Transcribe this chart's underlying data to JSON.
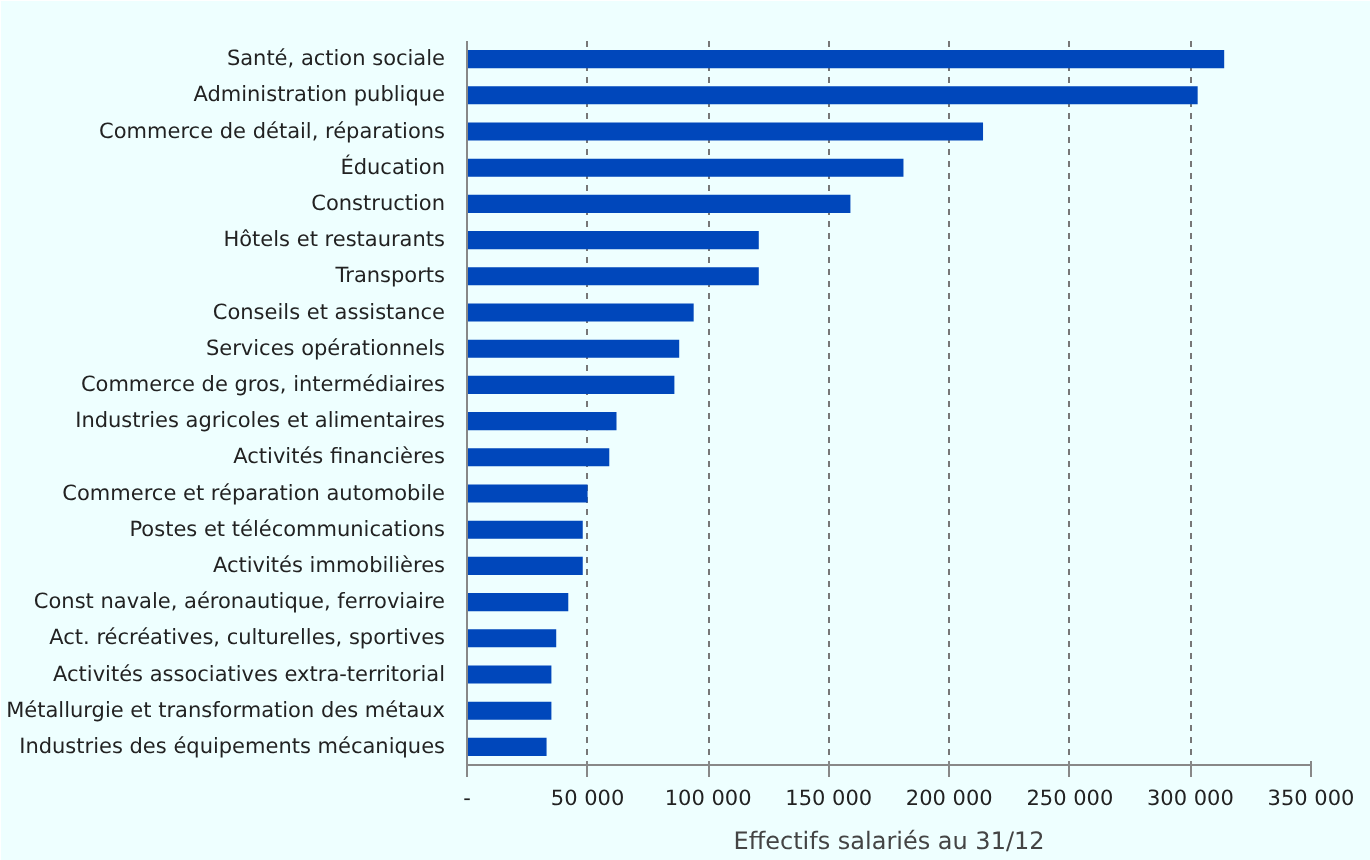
{
  "chart_data": {
    "type": "bar",
    "orientation": "horizontal",
    "xlabel": "Effectifs salariés au 31/12",
    "categories": [
      "Santé, action sociale",
      "Administration publique",
      "Commerce de détail, réparations",
      "Éducation",
      "Construction",
      "Hôtels et restaurants",
      "Transports",
      "Conseils et assistance",
      "Services opérationnels",
      "Commerce de gros, intermédiaires",
      "Industries agricoles et alimentaires",
      "Activités financières",
      "Commerce et réparation automobile",
      "Postes et télécommunications",
      "Activités immobilières",
      "Const navale, aéronautique, ferroviaire",
      "Act. récréatives, culturelles, sportives",
      "Activités associatives extra-territorial",
      "Métallurgie et transformation des métaux",
      "Industries des équipements mécaniques"
    ],
    "values": [
      314000,
      303000,
      214000,
      181000,
      159000,
      121000,
      121000,
      94000,
      88000,
      86000,
      62000,
      59000,
      50000,
      48000,
      48000,
      42000,
      37000,
      35000,
      35000,
      33000
    ],
    "color": "#0047bb",
    "xlim": [
      0,
      350000
    ],
    "xticks": [
      {
        "value": 0,
        "label": "-"
      },
      {
        "value": 50000,
        "label": "50 000"
      },
      {
        "value": 100000,
        "label": "100 000"
      },
      {
        "value": 150000,
        "label": "150 000"
      },
      {
        "value": 200000,
        "label": "200 000"
      },
      {
        "value": 250000,
        "label": "250 000"
      },
      {
        "value": 300000,
        "label": "300 000"
      },
      {
        "value": 350000,
        "label": "350 000"
      }
    ],
    "grid": "x"
  }
}
